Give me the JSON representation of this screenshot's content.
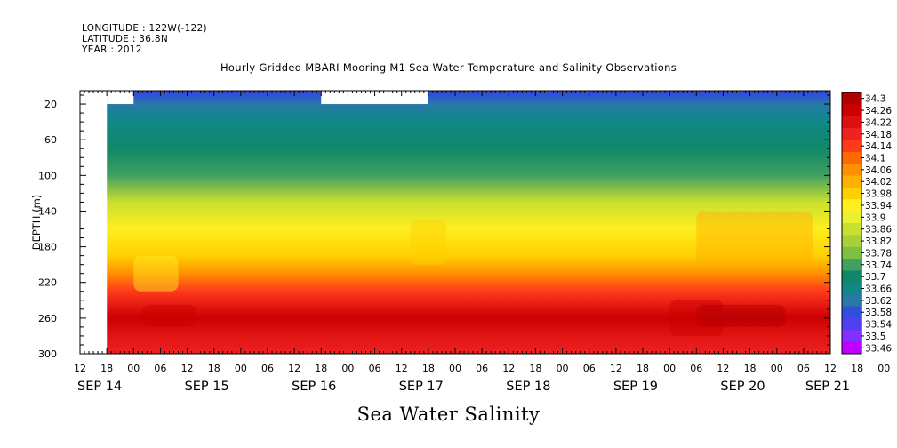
{
  "header": {
    "longitude": "LONGITUDE : 122W(-122)",
    "latitude": "LATITUDE : 36.8N",
    "year": "YEAR : 2012"
  },
  "chart_data": {
    "type": "heatmap",
    "title": "Hourly Gridded MBARI Mooring M1 Sea Water Temperature and Salinity Observations",
    "xlabel": "Sea Water Salinity",
    "ylabel": "DEPTH (m)",
    "y_ticks": [
      20,
      60,
      100,
      140,
      180,
      220,
      260,
      300
    ],
    "ylim": [
      300,
      5
    ],
    "xlim_hours": [
      -12,
      156
    ],
    "x_hour_ticks": [
      "12",
      "18",
      "00",
      "06",
      "12",
      "18",
      "00",
      "06",
      "12",
      "18",
      "00",
      "06",
      "12",
      "18",
      "00",
      "06",
      "12",
      "18",
      "00",
      "06",
      "12",
      "18",
      "00",
      "06",
      "12",
      "18",
      "00",
      "06",
      "12",
      "18",
      "00",
      "06",
      "12"
    ],
    "x_day_labels": [
      {
        "label": "SEP 14",
        "hour": -12
      },
      {
        "label": "SEP 15",
        "hour": 12
      },
      {
        "label": "SEP 16",
        "hour": 36
      },
      {
        "label": "SEP 17",
        "hour": 60
      },
      {
        "label": "SEP 18",
        "hour": 84
      },
      {
        "label": "SEP 19",
        "hour": 108
      },
      {
        "label": "SEP 20",
        "hour": 132
      },
      {
        "label": "SEP 21",
        "hour": 151
      }
    ],
    "colorbar_levels": [
      "34.3",
      "34.26",
      "34.22",
      "34.18",
      "34.14",
      "34.1",
      "34.06",
      "34.02",
      "33.98",
      "33.94",
      "33.9",
      "33.86",
      "33.82",
      "33.78",
      "33.74",
      "33.7",
      "33.66",
      "33.62",
      "33.58",
      "33.54",
      "33.5",
      "33.46"
    ],
    "colorbar_colors": [
      "#b00000",
      "#cc0000",
      "#dd1010",
      "#ee2222",
      "#ff3a1a",
      "#ff6a00",
      "#ff9000",
      "#ffb000",
      "#ffd000",
      "#ffee20",
      "#e8f030",
      "#c8e030",
      "#a8d038",
      "#80c040",
      "#40a060",
      "#108868",
      "#108888",
      "#2878a8",
      "#3050d8",
      "#5040f0",
      "#8030ff",
      "#c000ff"
    ],
    "profile": [
      {
        "depth": 10,
        "salinity": 33.56
      },
      {
        "depth": 20,
        "salinity": 33.6
      },
      {
        "depth": 40,
        "salinity": 33.64
      },
      {
        "depth": 70,
        "salinity": 33.68
      },
      {
        "depth": 100,
        "salinity": 33.74
      },
      {
        "depth": 130,
        "salinity": 33.84
      },
      {
        "depth": 160,
        "salinity": 33.92
      },
      {
        "depth": 190,
        "salinity": 33.98
      },
      {
        "depth": 210,
        "salinity": 34.06
      },
      {
        "depth": 230,
        "salinity": 34.16
      },
      {
        "depth": 250,
        "salinity": 34.2
      },
      {
        "depth": 260,
        "salinity": 34.24
      },
      {
        "depth": 275,
        "salinity": 34.2
      },
      {
        "depth": 300,
        "salinity": 34.18
      }
    ]
  }
}
